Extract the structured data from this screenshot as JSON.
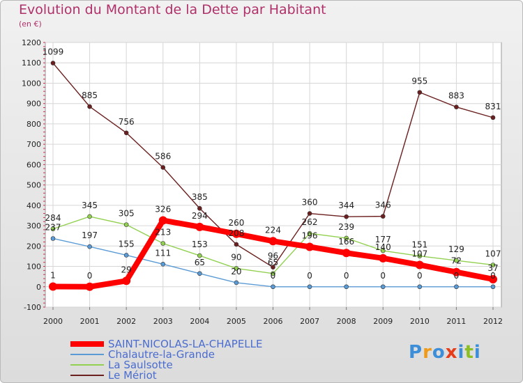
{
  "chart_data": {
    "type": "line",
    "title": "Evolution du Montant de la Dette par Habitant",
    "subtitle": "(en €)",
    "categories": [
      "2000",
      "2001",
      "2002",
      "2003",
      "2004",
      "2005",
      "2006",
      "2007",
      "2008",
      "2009",
      "2010",
      "2011",
      "2012"
    ],
    "ylim": [
      -100,
      1200
    ],
    "yticks": [
      -100,
      0,
      100,
      200,
      300,
      400,
      500,
      600,
      700,
      800,
      900,
      1000,
      1100,
      1200
    ],
    "grid": true,
    "legend_position": "bottom-left",
    "series": [
      {
        "name": "SAINT-NICOLAS-LA-CHAPELLE",
        "color": "#ff0000",
        "values": [
          1,
          0,
          29,
          326,
          294,
          260,
          224,
          196,
          166,
          140,
          107,
          72,
          37
        ]
      },
      {
        "name": "Chalautre-la-Grande",
        "color": "#5b9bd5",
        "values": [
          237,
          197,
          155,
          111,
          65,
          20,
          0,
          0,
          0,
          0,
          0,
          0,
          0
        ]
      },
      {
        "name": "La Saulsotte",
        "color": "#92d050",
        "values": [
          284,
          345,
          305,
          213,
          153,
          90,
          65,
          262,
          239,
          177,
          151,
          129,
          107
        ]
      },
      {
        "name": "Le Mériot",
        "color": "#6b1f1f",
        "values": [
          1099,
          885,
          756,
          586,
          385,
          208,
          96,
          360,
          344,
          346,
          955,
          883,
          831
        ]
      }
    ]
  },
  "logo": {
    "text": "Proxiti",
    "colors": [
      "#3d8ed8",
      "#f09a1a",
      "#3d8ed8",
      "#e53c1a",
      "#3d8ed8",
      "#8cbf26",
      "#3d8ed8"
    ]
  }
}
